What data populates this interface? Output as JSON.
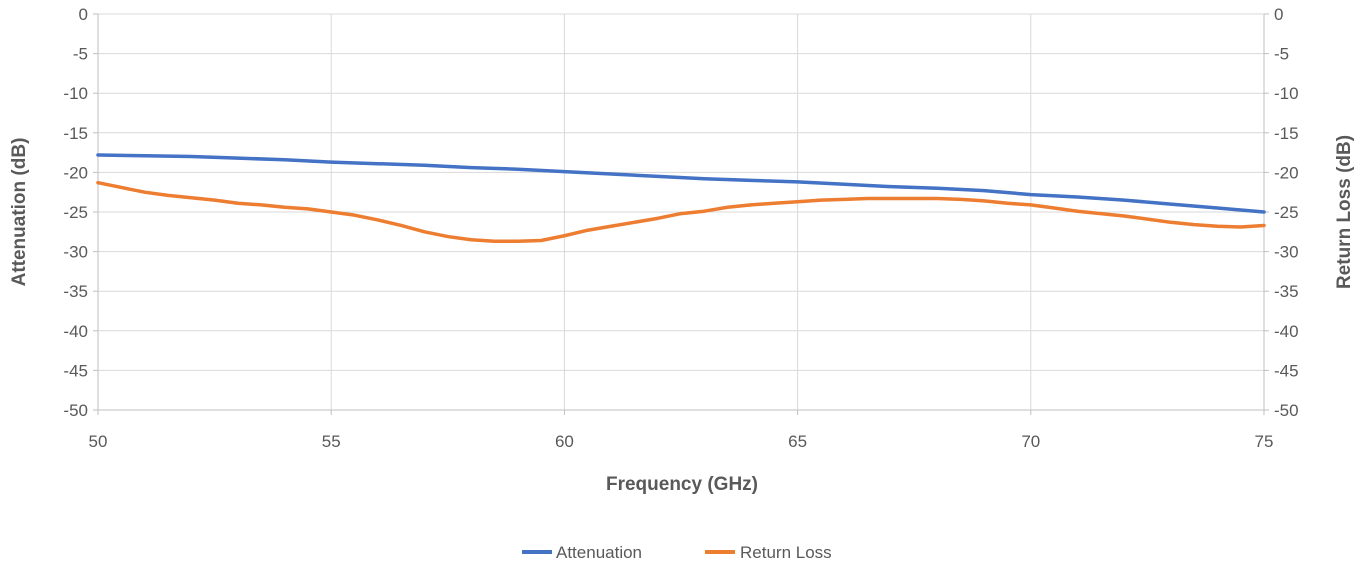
{
  "chart_data": {
    "type": "line",
    "xlabel": "Frequency (GHz)",
    "ylabel": "Attenuation (dB)",
    "y2label": "Return Loss (dB)",
    "xlim": [
      50,
      75
    ],
    "ylim": [
      -50,
      0
    ],
    "y2lim": [
      -50,
      0
    ],
    "xticks": [
      "50",
      "55",
      "60",
      "65",
      "70",
      "75"
    ],
    "yticks": [
      "0",
      "-5",
      "-10",
      "-15",
      "-20",
      "-25",
      "-30",
      "-35",
      "-40",
      "-45",
      "-50"
    ],
    "y2ticks": [
      "0",
      "-5",
      "-10",
      "-15",
      "-20",
      "-25",
      "-30",
      "-35",
      "-40",
      "-45",
      "-50"
    ],
    "grid": true,
    "legend_position": "bottom",
    "series": [
      {
        "name": "Attenuation",
        "color": "#4472c4",
        "axis": "left",
        "x": [
          50,
          51,
          52,
          53,
          54,
          55,
          56,
          57,
          58,
          59,
          60,
          61,
          62,
          63,
          64,
          65,
          66,
          67,
          68,
          69,
          70,
          71,
          72,
          73,
          74,
          75
        ],
        "y": [
          -17.8,
          -17.9,
          -18.0,
          -18.2,
          -18.4,
          -18.7,
          -18.9,
          -19.1,
          -19.4,
          -19.6,
          -19.9,
          -20.2,
          -20.5,
          -20.8,
          -21.0,
          -21.2,
          -21.5,
          -21.8,
          -22.0,
          -22.3,
          -22.8,
          -23.1,
          -23.5,
          -24.0,
          -24.5,
          -25.0
        ]
      },
      {
        "name": "Return Loss",
        "color": "#ed7d31",
        "axis": "right",
        "x": [
          50,
          50.5,
          51,
          51.5,
          52,
          52.5,
          53,
          53.5,
          54,
          54.5,
          55,
          55.5,
          56,
          56.5,
          57,
          57.5,
          58,
          58.5,
          59,
          59.5,
          60,
          60.5,
          61,
          61.5,
          62,
          62.5,
          63,
          63.5,
          64,
          64.5,
          65,
          65.5,
          66,
          66.5,
          67,
          67.5,
          68,
          68.5,
          69,
          69.5,
          70,
          70.5,
          71,
          71.5,
          72,
          72.5,
          73,
          73.5,
          74,
          74.5,
          75
        ],
        "y": [
          -21.3,
          -21.9,
          -22.5,
          -22.9,
          -23.2,
          -23.5,
          -23.9,
          -24.1,
          -24.4,
          -24.6,
          -25.0,
          -25.4,
          -26.0,
          -26.7,
          -27.5,
          -28.1,
          -28.5,
          -28.7,
          -28.7,
          -28.6,
          -28.0,
          -27.3,
          -26.8,
          -26.3,
          -25.8,
          -25.2,
          -24.9,
          -24.4,
          -24.1,
          -23.9,
          -23.7,
          -23.5,
          -23.4,
          -23.3,
          -23.3,
          -23.3,
          -23.3,
          -23.4,
          -23.6,
          -23.9,
          -24.1,
          -24.5,
          -24.9,
          -25.2,
          -25.5,
          -25.9,
          -26.3,
          -26.6,
          -26.8,
          -26.9,
          -26.7
        ]
      }
    ]
  }
}
